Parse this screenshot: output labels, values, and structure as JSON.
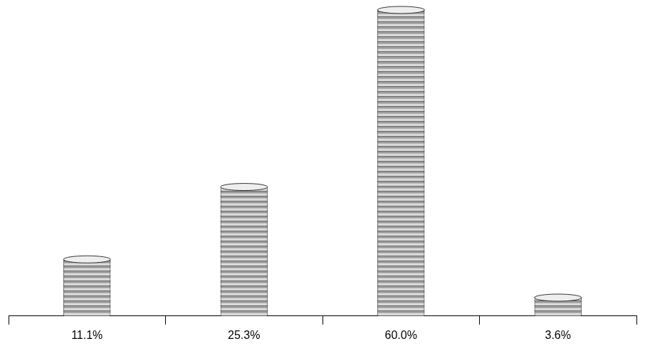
{
  "chart_data": {
    "type": "bar",
    "categories": [
      null,
      null,
      null,
      null
    ],
    "values": [
      11.1,
      25.3,
      60.0,
      3.6
    ],
    "value_labels": [
      "11.1%",
      "25.3%",
      "60.0%",
      "3.6%"
    ],
    "data_labels": true,
    "color": "#d9d9d9",
    "ylim": [
      0,
      60
    ],
    "tick_labels": false,
    "grid": false
  }
}
